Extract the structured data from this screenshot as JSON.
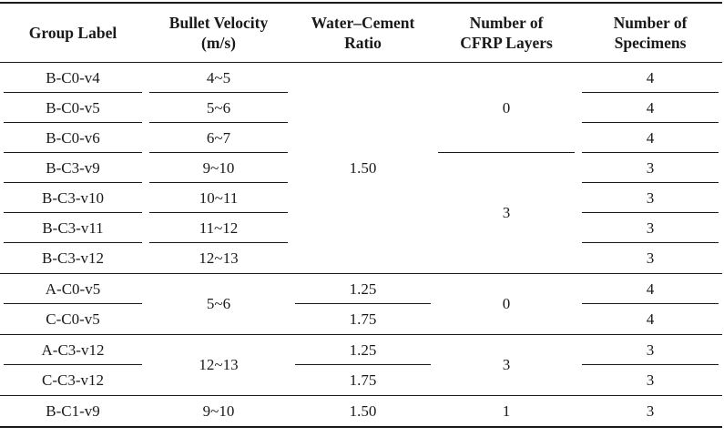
{
  "table": {
    "headers": {
      "group_label": "Group Label",
      "bullet_velocity_line1": "Bullet Velocity",
      "bullet_velocity_line2": "(m/s)",
      "wc_ratio_line1": "Water–Cement",
      "wc_ratio_line2": "Ratio",
      "cfrp_line1": "Number of",
      "cfrp_line2": "CFRP Layers",
      "specimens_line1": "Number of",
      "specimens_line2": "Specimens"
    },
    "rows": [
      {
        "group": "B-C0-v4",
        "velocity": "4~5",
        "specimens": "4"
      },
      {
        "group": "B-C0-v5",
        "velocity": "5~6",
        "specimens": "4"
      },
      {
        "group": "B-C0-v6",
        "velocity": "6~7",
        "specimens": "4"
      },
      {
        "group": "B-C3-v9",
        "velocity": "9~10",
        "specimens": "3"
      },
      {
        "group": "B-C3-v10",
        "velocity": "10~11",
        "specimens": "3"
      },
      {
        "group": "B-C3-v11",
        "velocity": "11~12",
        "specimens": "3"
      },
      {
        "group": "B-C3-v12",
        "velocity": "12~13",
        "specimens": "3"
      },
      {
        "group": "A-C0-v5",
        "wc": "1.25",
        "specimens": "4"
      },
      {
        "group": "C-C0-v5",
        "wc": "1.75",
        "specimens": "4"
      },
      {
        "group": "A-C3-v12",
        "wc": "1.25",
        "specimens": "3"
      },
      {
        "group": "C-C3-v12",
        "wc": "1.75",
        "specimens": "3"
      },
      {
        "group": "B-C1-v9",
        "velocity": "9~10",
        "wc": "1.50",
        "cfrp": "1",
        "specimens": "3"
      }
    ],
    "merged": {
      "wc_block_1": "1.50",
      "cfrp_block_1": "0",
      "cfrp_block_2": "3",
      "velocity_block_1": "5~6",
      "cfrp_block_3": "0",
      "velocity_block_2": "12~13",
      "cfrp_block_4": "3"
    }
  }
}
